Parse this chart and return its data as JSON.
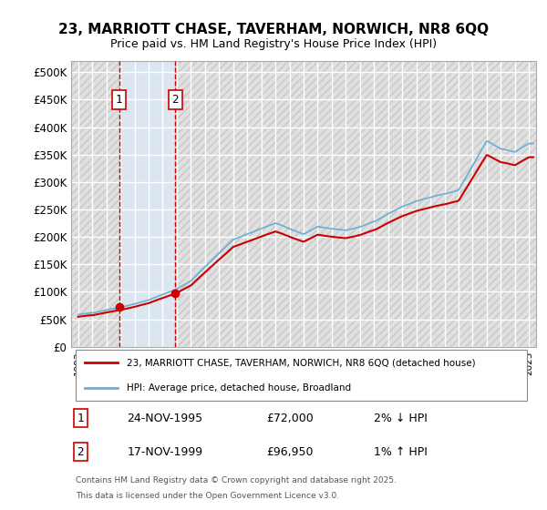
{
  "title": "23, MARRIOTT CHASE, TAVERHAM, NORWICH, NR8 6QQ",
  "subtitle": "Price paid vs. HM Land Registry's House Price Index (HPI)",
  "ylim": [
    0,
    520000
  ],
  "yticks": [
    0,
    50000,
    100000,
    150000,
    200000,
    250000,
    300000,
    350000,
    400000,
    450000,
    500000
  ],
  "ytick_labels": [
    "£0",
    "£50K",
    "£100K",
    "£150K",
    "£200K",
    "£250K",
    "£300K",
    "£350K",
    "£400K",
    "£450K",
    "£500K"
  ],
  "xlim_start": 1992.5,
  "xlim_end": 2025.5,
  "background_color": "#ffffff",
  "plot_bg_color": "#f0f0f0",
  "hatch_color": "#d8d8d8",
  "grid_color": "#ffffff",
  "sale1_year": 1995.9,
  "sale1_price": 72000,
  "sale2_year": 1999.9,
  "sale2_price": 96950,
  "sale1_label": "1",
  "sale2_label": "2",
  "legend_line1": "23, MARRIOTT CHASE, TAVERHAM, NORWICH, NR8 6QQ (detached house)",
  "legend_line2": "HPI: Average price, detached house, Broadland",
  "footer1": "Contains HM Land Registry data © Crown copyright and database right 2025.",
  "footer2": "This data is licensed under the Open Government Licence v3.0.",
  "table_rows": [
    {
      "num": "1",
      "date": "24-NOV-1995",
      "price": "£72,000",
      "hpi": "2% ↓ HPI"
    },
    {
      "num": "2",
      "date": "17-NOV-1999",
      "price": "£96,950",
      "hpi": "1% ↑ HPI"
    }
  ],
  "hpi_line_color": "#6baed6",
  "price_line_color": "#cc0000",
  "sale_marker_color": "#cc0000",
  "sale_vline_color": "#cc0000",
  "shade1_color": "#d0e0f0",
  "hatch_bg": "#e8e8e8"
}
